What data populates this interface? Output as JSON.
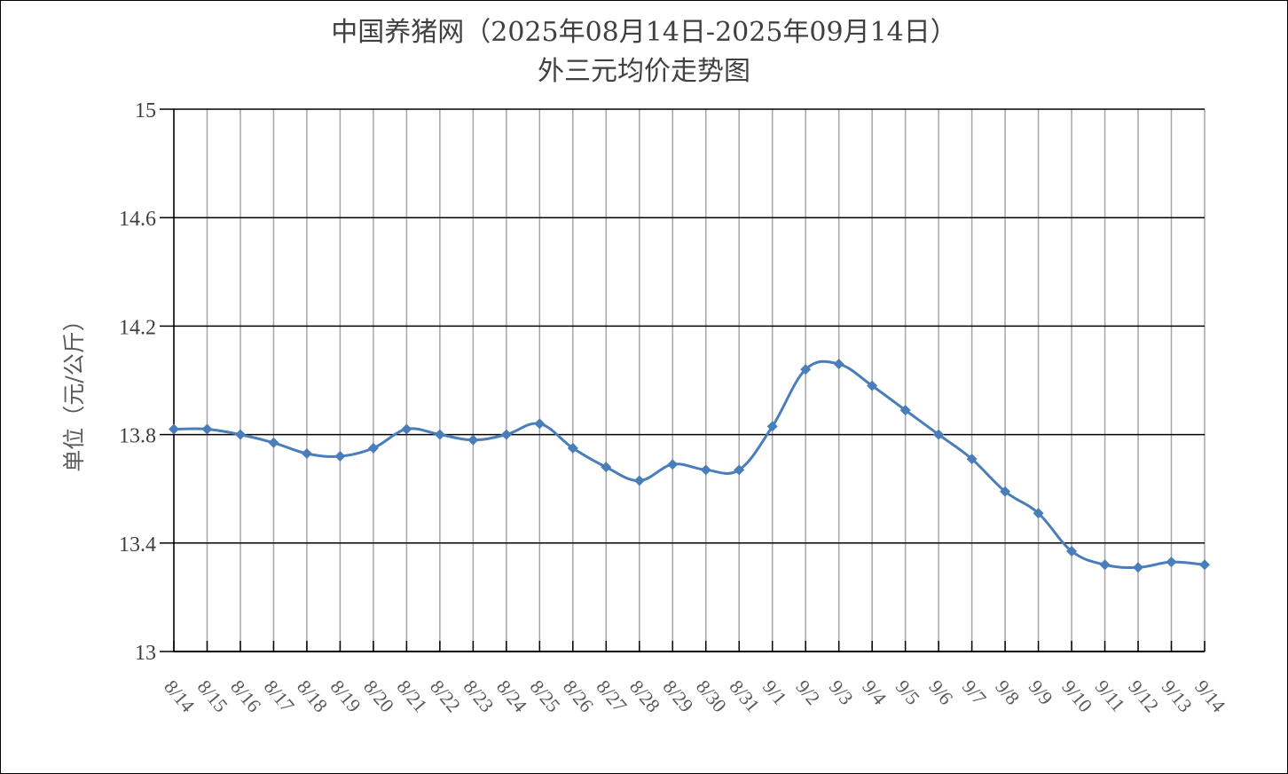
{
  "chart_data": {
    "type": "line",
    "title": "中国养猪网（2025年08月14日-2025年09月14日）",
    "subtitle": "外三元均价走势图",
    "ylabel": "单位（元/公斤）",
    "xlabel": "",
    "ylim": [
      13,
      15
    ],
    "yticks": [
      "15",
      "14.6",
      "14.2",
      "13.8",
      "13.4",
      "13"
    ],
    "ytick_values": [
      15,
      14.6,
      14.2,
      13.8,
      13.4,
      13
    ],
    "categories": [
      "8/14",
      "8/15",
      "8/16",
      "8/17",
      "8/18",
      "8/19",
      "8/20",
      "8/21",
      "8/22",
      "8/23",
      "8/24",
      "8/25",
      "8/26",
      "8/27",
      "8/28",
      "8/29",
      "8/30",
      "8/31",
      "9/1",
      "9/2",
      "9/3",
      "9/4",
      "9/5",
      "9/6",
      "9/7",
      "9/8",
      "9/9",
      "9/10",
      "9/11",
      "9/12",
      "9/13",
      "9/14"
    ],
    "series": [
      {
        "name": "",
        "color": "#4a7ebb",
        "marker": "diamond",
        "values": [
          13.82,
          13.82,
          13.8,
          13.77,
          13.73,
          13.72,
          13.75,
          13.82,
          13.8,
          13.78,
          13.8,
          13.84,
          13.75,
          13.68,
          13.63,
          13.69,
          13.67,
          13.67,
          13.83,
          14.04,
          14.06,
          13.98,
          13.89,
          13.8,
          13.71,
          13.59,
          13.51,
          13.37,
          13.32,
          13.31,
          13.33,
          13.32
        ]
      }
    ],
    "grid": true,
    "legend": "none"
  }
}
